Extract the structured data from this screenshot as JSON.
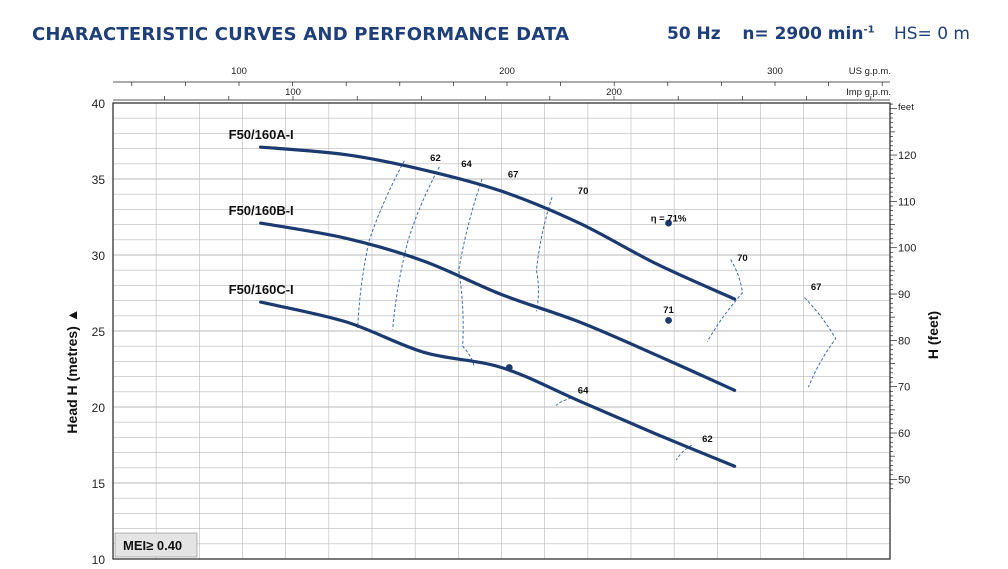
{
  "header": {
    "title": "CHARACTERISTIC CURVES AND PERFORMANCE DATA",
    "frequency": "50 Hz",
    "speed_prefix": "n= 2900 min",
    "speed_exp": "-1",
    "hs": "HS= 0 m"
  },
  "chart_data": {
    "type": "line",
    "title": "CHARACTERISTIC CURVES AND PERFORMANCE DATA",
    "ylabel": "Head H (metres)",
    "ylabel_arrow": "▲",
    "y2label": "H (feet)",
    "y2unit": "feet",
    "x_top1_unit": "US g.p.m.",
    "x_top2_unit": "Imp g.p.m.",
    "ylim": [
      10,
      40
    ],
    "y_ticks": [
      10,
      15,
      20,
      25,
      30,
      35,
      40
    ],
    "y2_ticks": [
      50,
      60,
      70,
      80,
      90,
      100,
      110,
      120
    ],
    "x_top1_ticks": [
      100,
      200,
      300
    ],
    "x_top2_ticks": [
      100,
      200
    ],
    "mei_label": "MEI≥ 0.40",
    "grid": true,
    "series": [
      {
        "name": "F50/160A-I",
        "color": "#1b3a70",
        "points": [
          [
            38,
            37.1
          ],
          [
            60,
            36.6
          ],
          [
            80,
            35.6
          ],
          [
            100,
            34.2
          ],
          [
            120,
            32.1
          ],
          [
            140,
            29.4
          ],
          [
            160,
            27.1
          ]
        ]
      },
      {
        "name": "F50/160B-I",
        "color": "#1b3a70",
        "points": [
          [
            38,
            32.1
          ],
          [
            60,
            31.1
          ],
          [
            80,
            29.6
          ],
          [
            100,
            27.4
          ],
          [
            120,
            25.6
          ],
          [
            140,
            23.4
          ],
          [
            160,
            21.1
          ]
        ]
      },
      {
        "name": "F50/160C-I",
        "color": "#1b3a70",
        "points": [
          [
            38,
            26.9
          ],
          [
            60,
            25.6
          ],
          [
            80,
            23.6
          ],
          [
            100,
            22.6
          ],
          [
            120,
            20.4
          ],
          [
            140,
            18.2
          ],
          [
            160,
            16.1
          ]
        ]
      }
    ],
    "efficiency_labels": [
      {
        "text": "62",
        "x": 83,
        "y": 36.2
      },
      {
        "text": "64",
        "x": 91,
        "y": 35.8
      },
      {
        "text": "67",
        "x": 103,
        "y": 35.1
      },
      {
        "text": "70",
        "x": 121,
        "y": 34.0
      },
      {
        "text": "η = 71%",
        "x": 143,
        "y": 32.2
      },
      {
        "text": "70",
        "x": 162,
        "y": 29.6
      },
      {
        "text": "67",
        "x": 181,
        "y": 27.7
      },
      {
        "text": "71",
        "x": 143,
        "y": 26.2
      },
      {
        "text": "64",
        "x": 121,
        "y": 20.9
      },
      {
        "text": "62",
        "x": 153,
        "y": 17.7
      }
    ],
    "efficiency_points": [
      {
        "x": 143,
        "y": 32.1
      },
      {
        "x": 143,
        "y": 25.7
      },
      {
        "x": 102,
        "y": 22.6
      }
    ]
  }
}
